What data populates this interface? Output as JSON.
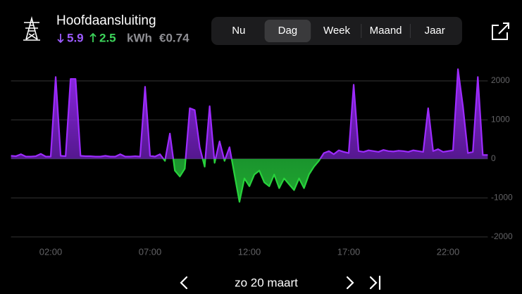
{
  "header": {
    "title": "Hoofdaansluiting",
    "import": "5.9",
    "export": "2.5",
    "unit": "kWh",
    "cost": "€0.74"
  },
  "tabs": {
    "items": [
      "Nu",
      "Dag",
      "Week",
      "Maand",
      "Jaar"
    ],
    "selected": 1
  },
  "chart_data": {
    "type": "area",
    "import_color": "#9d2bff",
    "export_color": "#28d23c",
    "x": [
      0,
      0.25,
      0.5,
      0.75,
      1,
      1.25,
      1.5,
      1.75,
      2,
      2.25,
      2.5,
      2.75,
      3,
      3.25,
      3.5,
      3.75,
      4,
      4.25,
      4.5,
      4.75,
      5,
      5.25,
      5.5,
      5.75,
      6,
      6.25,
      6.5,
      6.75,
      7,
      7.25,
      7.5,
      7.75,
      8,
      8.25,
      8.5,
      8.75,
      9,
      9.25,
      9.5,
      9.75,
      10,
      10.25,
      10.5,
      10.75,
      11,
      11.25,
      11.5,
      11.75,
      12,
      12.25,
      12.5,
      12.75,
      13,
      13.25,
      13.5,
      13.75,
      14,
      14.25,
      14.5,
      14.75,
      15,
      15.25,
      15.5,
      15.75,
      16,
      16.25,
      16.5,
      16.75,
      17,
      17.25,
      17.5,
      17.75,
      18,
      18.25,
      18.5,
      18.75,
      19,
      19.25,
      19.5,
      19.75,
      20,
      20.25,
      20.5,
      20.75,
      21,
      21.25,
      21.5,
      21.75,
      22,
      22.25,
      22.5,
      22.75,
      23,
      23.25,
      23.5,
      23.75,
      24
    ],
    "values": [
      80,
      70,
      120,
      60,
      60,
      70,
      130,
      60,
      60,
      2100,
      80,
      70,
      2050,
      2050,
      80,
      70,
      70,
      60,
      60,
      80,
      60,
      60,
      120,
      60,
      60,
      70,
      60,
      1850,
      80,
      60,
      120,
      -50,
      650,
      -300,
      -450,
      -250,
      1300,
      1250,
      300,
      -200,
      1350,
      -100,
      450,
      -50,
      300,
      -400,
      -1100,
      -500,
      -700,
      -400,
      -300,
      -600,
      -700,
      -400,
      -750,
      -500,
      -650,
      -800,
      -500,
      -750,
      -400,
      -200,
      -50,
      150,
      200,
      120,
      220,
      180,
      150,
      1900,
      200,
      180,
      220,
      200,
      180,
      230,
      200,
      190,
      210,
      200,
      180,
      220,
      200,
      180,
      1300,
      200,
      250,
      180,
      200,
      220,
      2300,
      1350,
      150,
      180,
      2100,
      100,
      100
    ],
    "xlim": [
      0,
      24
    ],
    "xticks": [
      {
        "value": 2,
        "label": "02:00"
      },
      {
        "value": 7,
        "label": "07:00"
      },
      {
        "value": 12,
        "label": "12:00"
      },
      {
        "value": 17,
        "label": "17:00"
      },
      {
        "value": 22,
        "label": "22:00"
      }
    ],
    "ylim": [
      -2200,
      2450
    ],
    "yticks": [
      -2000,
      -1000,
      0,
      1000,
      2000
    ],
    "grid": true
  },
  "nav": {
    "date": "zo 20 maart"
  }
}
